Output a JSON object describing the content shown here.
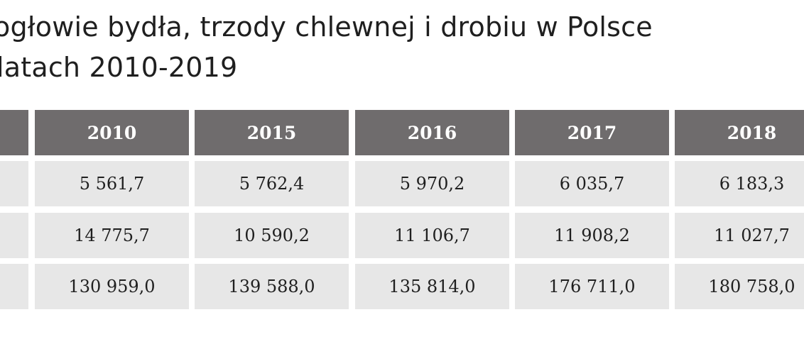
{
  "title": {
    "line1": "ogłowie bydła, trzody chlewnej i drobiu w Polsce",
    "line2": "latach 2010-2019"
  },
  "table": {
    "headers": [
      "",
      "2010",
      "2015",
      "2016",
      "2017",
      "2018"
    ],
    "rows": [
      [
        "",
        "5 561,7",
        "5 762,4",
        "5 970,2",
        "6 035,7",
        "6 183,3"
      ],
      [
        "",
        "14 775,7",
        "10 590,2",
        "11 106,7",
        "11 908,2",
        "11 027,7"
      ],
      [
        "",
        "130 959,0",
        "139 588,0",
        "135 814,0",
        "176 711,0",
        "180 758,0"
      ]
    ]
  },
  "colors": {
    "header_bg": "#6f6c6d",
    "cell_bg": "#e7e7e7",
    "text": "#1f1f1f"
  }
}
